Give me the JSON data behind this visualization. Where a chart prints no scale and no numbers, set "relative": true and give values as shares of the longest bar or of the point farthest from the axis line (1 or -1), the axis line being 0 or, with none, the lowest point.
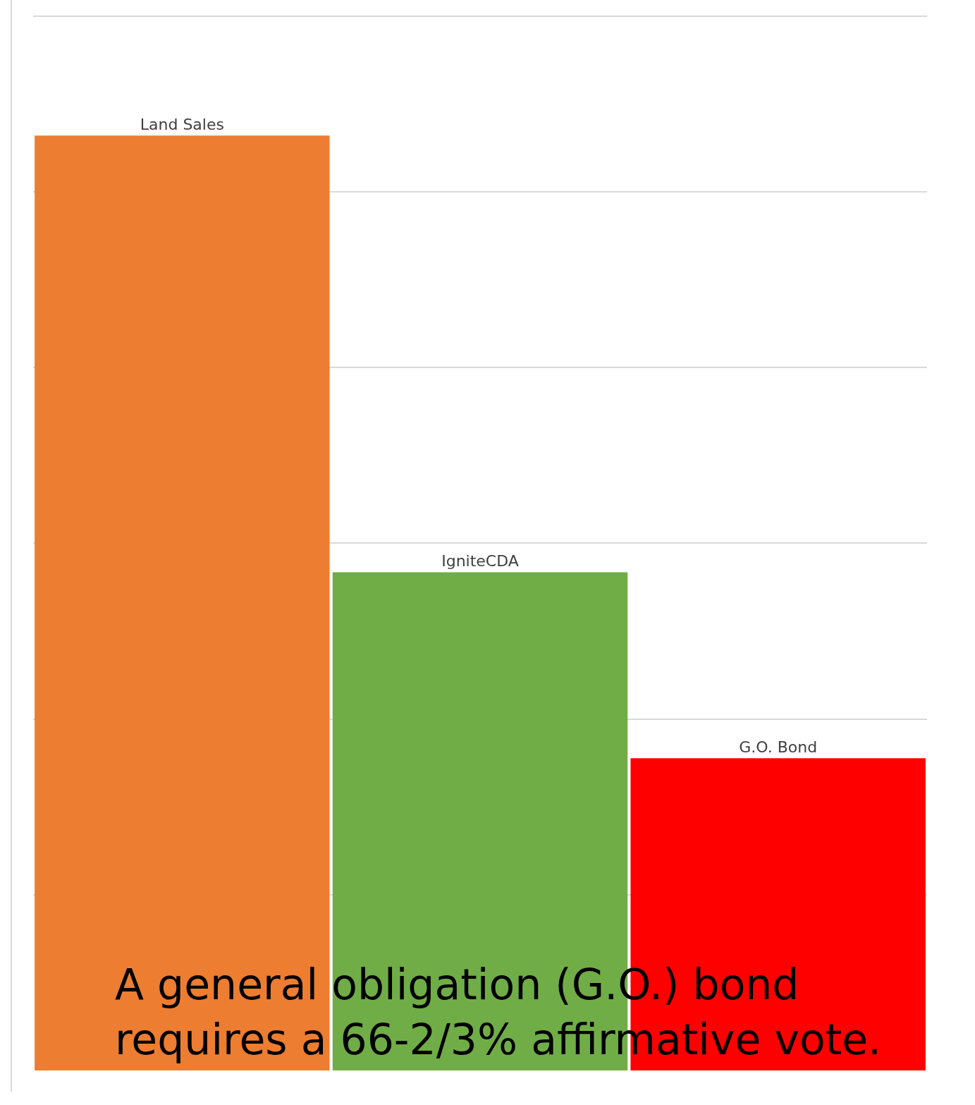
{
  "chart_data": {
    "type": "bar",
    "relative": true,
    "categories": [
      "Land Sales",
      "IgniteCDA",
      "G.O. Bond"
    ],
    "values": [
      1,
      0.533,
      0.334
    ],
    "colors": [
      "#ed7d31",
      "#70ad47",
      "#ff0000"
    ],
    "grid": "y",
    "annotations": [
      "A general obligation (G.O.) bond requires a 66-2/3% affirmative vote."
    ]
  }
}
